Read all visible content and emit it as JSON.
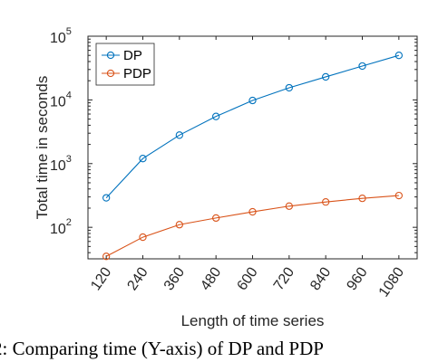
{
  "chart_data": {
    "type": "line",
    "x": [
      120,
      240,
      360,
      480,
      600,
      720,
      840,
      960,
      1080
    ],
    "x_tick_labels": [
      "120",
      "240",
      "360",
      "480",
      "600",
      "720",
      "840",
      "960",
      "1080"
    ],
    "series": [
      {
        "name": "DP",
        "color": "#0072BD",
        "marker": "circle",
        "values": [
          290,
          1200,
          2800,
          5500,
          9800,
          15500,
          23000,
          34000,
          50000
        ]
      },
      {
        "name": "PDP",
        "color": "#D95319",
        "marker": "circle",
        "values": [
          35,
          70,
          110,
          140,
          175,
          215,
          250,
          285,
          315
        ]
      }
    ],
    "xlabel": "Length of time series",
    "ylabel": "Total time in seconds",
    "yscale": "log",
    "xlim": [
      60,
      1140
    ],
    "ylim": [
      32,
      100000
    ],
    "y_ticks": [
      {
        "value": 100,
        "base": "10",
        "exp": "2"
      },
      {
        "value": 1000,
        "base": "10",
        "exp": "3"
      },
      {
        "value": 10000,
        "base": "10",
        "exp": "4"
      },
      {
        "value": 100000,
        "base": "10",
        "exp": "5"
      }
    ],
    "grid": false,
    "legend_position": "top-left"
  },
  "caption_fragment": "2: Comparing time (Y-axis) of DP and PDP"
}
